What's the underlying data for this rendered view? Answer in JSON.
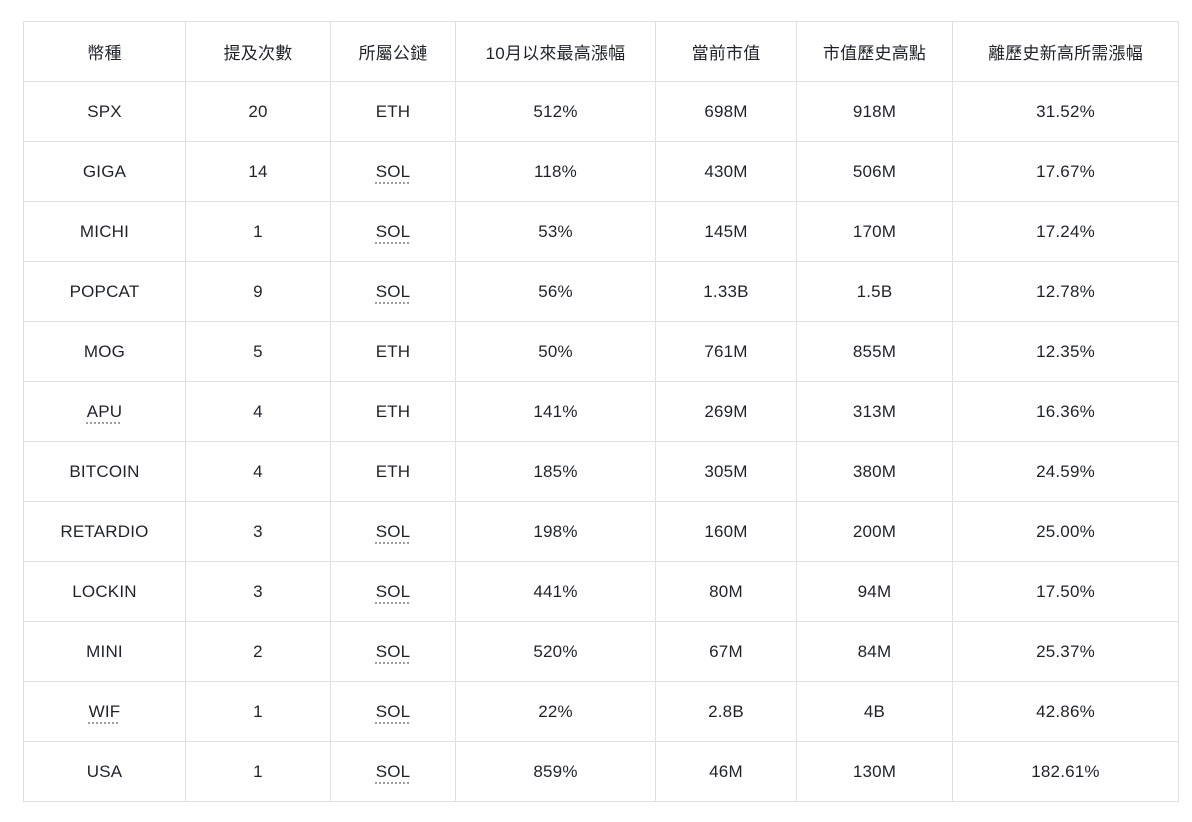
{
  "chart_data": {
    "type": "table",
    "title": "",
    "columns": [
      "幣種",
      "提及次數",
      "所屬公鏈",
      "10月以來最高漲幅",
      "當前市值",
      "市值歷史高點",
      "離歷史新高所需漲幅"
    ],
    "column_keys": [
      "coin",
      "mentions",
      "chain",
      "max_gain_since_oct",
      "current_mcap",
      "ath_mcap",
      "gain_needed_to_ath"
    ],
    "rows": [
      {
        "coin": "SPX",
        "mentions": "20",
        "chain": "ETH",
        "max_gain_since_oct": "512%",
        "current_mcap": "698M",
        "ath_mcap": "918M",
        "gain_needed_to_ath": "31.52%",
        "coin_link": false,
        "chain_link": false
      },
      {
        "coin": "GIGA",
        "mentions": "14",
        "chain": "SOL",
        "max_gain_since_oct": "118%",
        "current_mcap": "430M",
        "ath_mcap": "506M",
        "gain_needed_to_ath": "17.67%",
        "coin_link": false,
        "chain_link": true
      },
      {
        "coin": "MICHI",
        "mentions": "1",
        "chain": "SOL",
        "max_gain_since_oct": "53%",
        "current_mcap": "145M",
        "ath_mcap": "170M",
        "gain_needed_to_ath": "17.24%",
        "coin_link": false,
        "chain_link": true
      },
      {
        "coin": "POPCAT",
        "mentions": "9",
        "chain": "SOL",
        "max_gain_since_oct": "56%",
        "current_mcap": "1.33B",
        "ath_mcap": "1.5B",
        "gain_needed_to_ath": "12.78%",
        "coin_link": false,
        "chain_link": true
      },
      {
        "coin": "MOG",
        "mentions": "5",
        "chain": "ETH",
        "max_gain_since_oct": "50%",
        "current_mcap": "761M",
        "ath_mcap": "855M",
        "gain_needed_to_ath": "12.35%",
        "coin_link": false,
        "chain_link": false
      },
      {
        "coin": "APU",
        "mentions": "4",
        "chain": "ETH",
        "max_gain_since_oct": "141%",
        "current_mcap": "269M",
        "ath_mcap": "313M",
        "gain_needed_to_ath": "16.36%",
        "coin_link": true,
        "chain_link": false
      },
      {
        "coin": "BITCOIN",
        "mentions": "4",
        "chain": "ETH",
        "max_gain_since_oct": "185%",
        "current_mcap": "305M",
        "ath_mcap": "380M",
        "gain_needed_to_ath": "24.59%",
        "coin_link": false,
        "chain_link": false
      },
      {
        "coin": "RETARDIO",
        "mentions": "3",
        "chain": "SOL",
        "max_gain_since_oct": "198%",
        "current_mcap": "160M",
        "ath_mcap": "200M",
        "gain_needed_to_ath": "25.00%",
        "coin_link": false,
        "chain_link": true
      },
      {
        "coin": "LOCKIN",
        "mentions": "3",
        "chain": "SOL",
        "max_gain_since_oct": "441%",
        "current_mcap": "80M",
        "ath_mcap": "94M",
        "gain_needed_to_ath": "17.50%",
        "coin_link": false,
        "chain_link": true
      },
      {
        "coin": "MINI",
        "mentions": "2",
        "chain": "SOL",
        "max_gain_since_oct": "520%",
        "current_mcap": "67M",
        "ath_mcap": "84M",
        "gain_needed_to_ath": "25.37%",
        "coin_link": false,
        "chain_link": true
      },
      {
        "coin": "WIF",
        "mentions": "1",
        "chain": "SOL",
        "max_gain_since_oct": "22%",
        "current_mcap": "2.8B",
        "ath_mcap": "4B",
        "gain_needed_to_ath": "42.86%",
        "coin_link": true,
        "chain_link": true
      },
      {
        "coin": "USA",
        "mentions": "1",
        "chain": "SOL",
        "max_gain_since_oct": "859%",
        "current_mcap": "46M",
        "ath_mcap": "130M",
        "gain_needed_to_ath": "182.61%",
        "coin_link": false,
        "chain_link": true
      }
    ],
    "layout": {
      "grid": "full-borders",
      "header_background": "#ffffff"
    }
  },
  "styles": {
    "border_color": "#dee0e3",
    "text_color": "#1f2329",
    "mention_underline_color": "#9aa0a6",
    "background": "#ffffff"
  }
}
